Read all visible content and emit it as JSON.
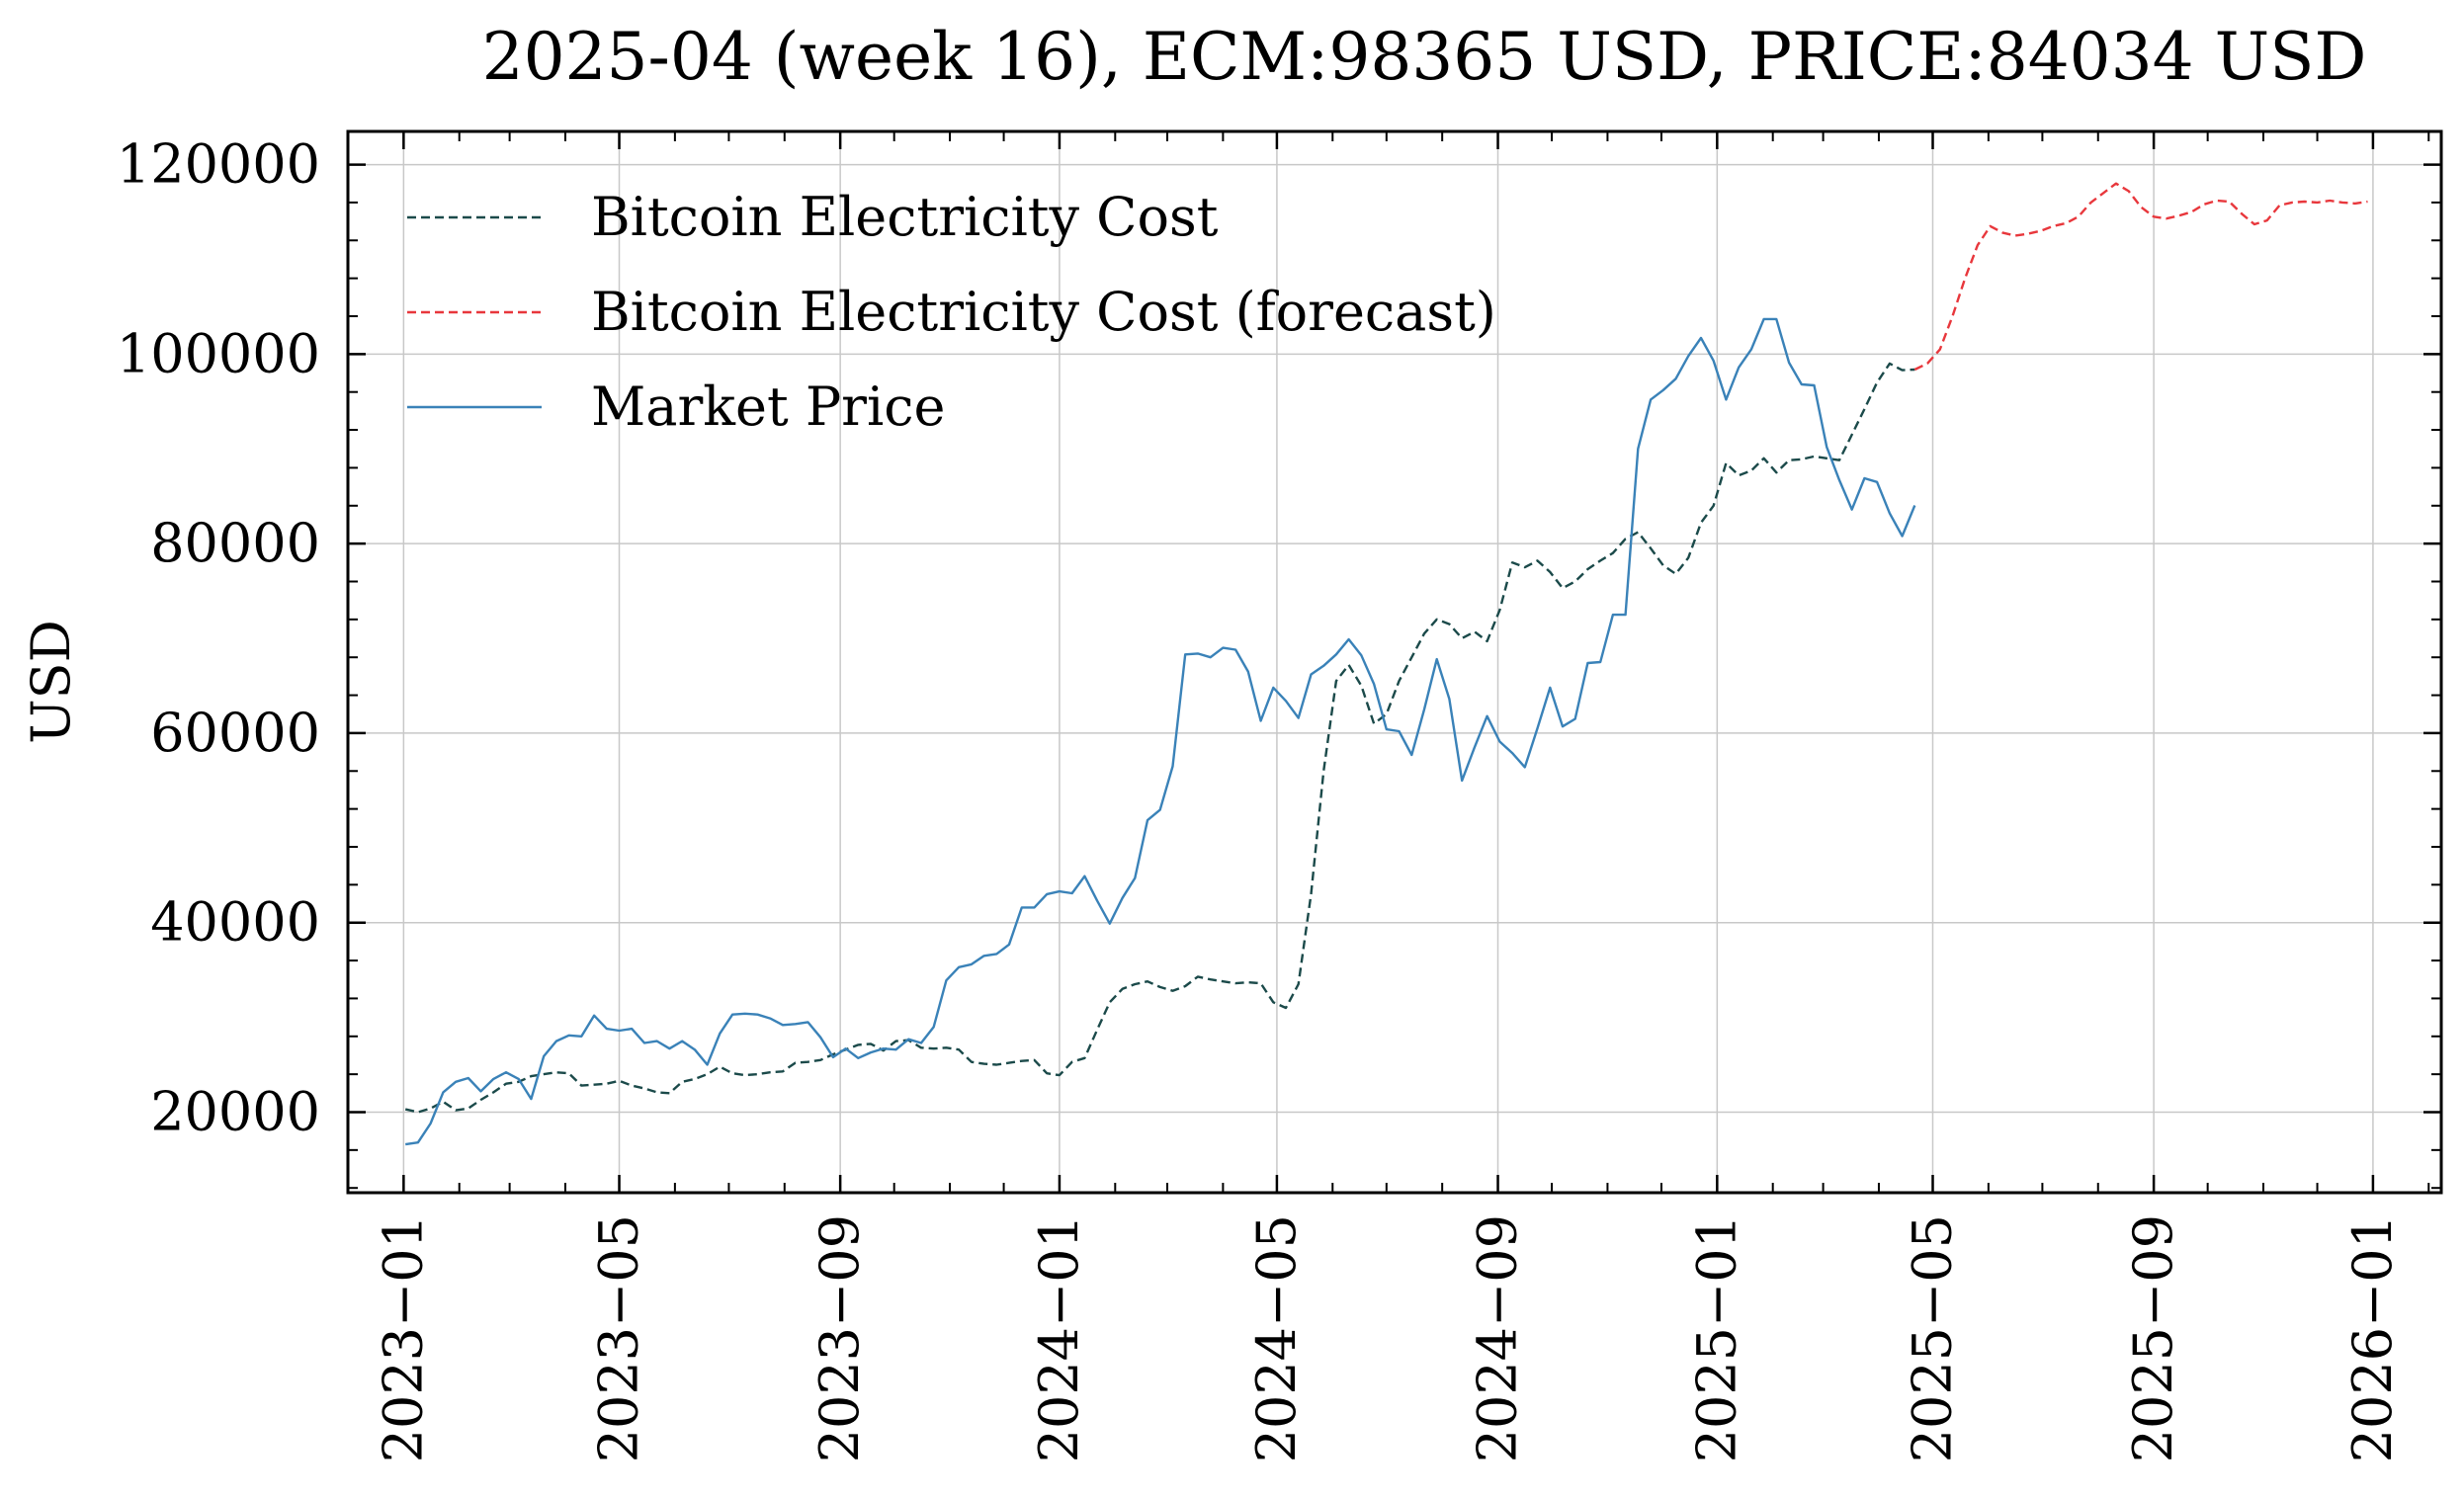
{
  "chart_data": {
    "type": "line",
    "title": "2025-04 (week 16), ECM:98365 USD, PRICE:84034 USD",
    "xlabel": "",
    "ylabel": "USD",
    "xlim": [
      "2022-12-01",
      "2026-02-08"
    ],
    "ylim": [
      11500,
      123500
    ],
    "yticks": [
      20000,
      40000,
      60000,
      80000,
      100000,
      120000
    ],
    "yticks_labels": [
      "20000",
      "40000",
      "60000",
      "80000",
      "100000",
      "120000"
    ],
    "xticks": [
      "2023-01-01",
      "2023-05-01",
      "2023-09-01",
      "2024-01-01",
      "2024-05-01",
      "2024-09-01",
      "2025-01-01",
      "2025-05-01",
      "2025-09-01",
      "2026-01-01"
    ],
    "xticks_labels": [
      "2023−01",
      "2023−05",
      "2023−09",
      "2024−01",
      "2024−05",
      "2024−09",
      "2025−01",
      "2025−05",
      "2025−09",
      "2026−01"
    ],
    "grid": true,
    "legend_position": "upper-left",
    "series": [
      {
        "name": "Bitcoin Electricity Cost",
        "style": "dashed",
        "color": "#1b4a4a",
        "x": [
          "2023-01-02",
          "2023-01-09",
          "2023-01-16",
          "2023-01-23",
          "2023-01-30",
          "2023-02-06",
          "2023-02-13",
          "2023-02-20",
          "2023-02-27",
          "2023-03-06",
          "2023-03-13",
          "2023-03-20",
          "2023-03-27",
          "2023-04-03",
          "2023-04-10",
          "2023-04-17",
          "2023-04-24",
          "2023-05-01",
          "2023-05-08",
          "2023-05-15",
          "2023-05-22",
          "2023-05-29",
          "2023-06-05",
          "2023-06-12",
          "2023-06-19",
          "2023-06-26",
          "2023-07-03",
          "2023-07-10",
          "2023-07-17",
          "2023-07-24",
          "2023-07-31",
          "2023-08-07",
          "2023-08-14",
          "2023-08-21",
          "2023-08-28",
          "2023-09-04",
          "2023-09-11",
          "2023-09-18",
          "2023-09-25",
          "2023-10-02",
          "2023-10-09",
          "2023-10-16",
          "2023-10-23",
          "2023-10-30",
          "2023-11-06",
          "2023-11-13",
          "2023-11-20",
          "2023-11-27",
          "2023-12-04",
          "2023-12-11",
          "2023-12-18",
          "2023-12-25",
          "2024-01-01",
          "2024-01-08",
          "2024-01-15",
          "2024-01-22",
          "2024-01-29",
          "2024-02-05",
          "2024-02-12",
          "2024-02-19",
          "2024-02-26",
          "2024-03-04",
          "2024-03-11",
          "2024-03-18",
          "2024-03-25",
          "2024-04-01",
          "2024-04-08",
          "2024-04-15",
          "2024-04-22",
          "2024-04-29",
          "2024-05-06",
          "2024-05-13",
          "2024-05-20",
          "2024-05-27",
          "2024-06-03",
          "2024-06-10",
          "2024-06-17",
          "2024-06-24",
          "2024-07-01",
          "2024-07-08",
          "2024-07-15",
          "2024-07-22",
          "2024-07-29",
          "2024-08-05",
          "2024-08-12",
          "2024-08-19",
          "2024-08-26",
          "2024-09-02",
          "2024-09-09",
          "2024-09-16",
          "2024-09-23",
          "2024-09-30",
          "2024-10-07",
          "2024-10-14",
          "2024-10-21",
          "2024-10-28",
          "2024-11-04",
          "2024-11-11",
          "2024-11-18",
          "2024-11-25",
          "2024-12-02",
          "2024-12-09",
          "2024-12-16",
          "2024-12-23",
          "2024-12-30",
          "2025-01-06",
          "2025-01-13",
          "2025-01-20",
          "2025-01-27",
          "2025-02-03",
          "2025-02-10",
          "2025-02-17",
          "2025-02-24",
          "2025-03-03",
          "2025-03-10",
          "2025-03-17",
          "2025-03-24",
          "2025-03-31",
          "2025-04-07",
          "2025-04-14",
          "2025-04-21"
        ],
        "y": [
          20300,
          20000,
          20400,
          21100,
          20200,
          20400,
          21300,
          22100,
          23000,
          23200,
          23800,
          24000,
          24200,
          24100,
          22800,
          22900,
          23000,
          23300,
          22800,
          22500,
          22100,
          22000,
          23200,
          23500,
          24000,
          24800,
          24100,
          23900,
          24000,
          24200,
          24300,
          25200,
          25300,
          25500,
          26100,
          26600,
          27100,
          27200,
          26500,
          27500,
          27600,
          26800,
          26700,
          26800,
          26600,
          25300,
          25100,
          25000,
          25200,
          25400,
          25500,
          24100,
          23900,
          25300,
          25700,
          28700,
          31600,
          33000,
          33500,
          33800,
          33200,
          32800,
          33300,
          34300,
          34000,
          33800,
          33600,
          33700,
          33600,
          31600,
          31000,
          33500,
          43000,
          56000,
          65500,
          67200,
          65000,
          61000,
          62000,
          65500,
          68000,
          70500,
          72000,
          71500,
          70000,
          70700,
          69700,
          73000,
          78000,
          77500,
          78200,
          77000,
          75300,
          76000,
          77300,
          78200,
          79000,
          80500,
          81200,
          79500,
          77700,
          76800,
          78500,
          82200,
          84000,
          88500,
          87200,
          87700,
          89000,
          87500,
          88800,
          88900,
          89200,
          89000,
          88800,
          91500,
          94200,
          97000,
          99000,
          98300,
          98365
        ]
      },
      {
        "name": "Bitcoin Electricity Cost (forecast)",
        "style": "dashed",
        "color": "#e8373c",
        "x": [
          "2025-04-21",
          "2025-04-28",
          "2025-05-05",
          "2025-05-12",
          "2025-05-19",
          "2025-05-26",
          "2025-06-02",
          "2025-06-09",
          "2025-06-16",
          "2025-06-23",
          "2025-06-30",
          "2025-07-07",
          "2025-07-14",
          "2025-07-21",
          "2025-07-28",
          "2025-08-04",
          "2025-08-11",
          "2025-08-18",
          "2025-08-25",
          "2025-09-01",
          "2025-09-08",
          "2025-09-15",
          "2025-09-22",
          "2025-09-29",
          "2025-10-06",
          "2025-10-13",
          "2025-10-20",
          "2025-10-27",
          "2025-11-03",
          "2025-11-10",
          "2025-11-17",
          "2025-11-24",
          "2025-12-01",
          "2025-12-08",
          "2025-12-15",
          "2025-12-22",
          "2025-12-29"
        ],
        "y": [
          98365,
          99000,
          100500,
          104000,
          108000,
          111500,
          113500,
          112800,
          112500,
          112700,
          113000,
          113500,
          113800,
          114500,
          116000,
          117000,
          118000,
          117200,
          115500,
          114500,
          114300,
          114600,
          115000,
          115800,
          116200,
          116100,
          114800,
          113700,
          114100,
          115700,
          116000,
          116100,
          116000,
          116200,
          116000,
          115900,
          116100
        ]
      },
      {
        "name": "Market Price",
        "style": "solid",
        "color": "#3a82b8",
        "x": [
          "2023-01-02",
          "2023-01-09",
          "2023-01-16",
          "2023-01-23",
          "2023-01-30",
          "2023-02-06",
          "2023-02-13",
          "2023-02-20",
          "2023-02-27",
          "2023-03-06",
          "2023-03-13",
          "2023-03-20",
          "2023-03-27",
          "2023-04-03",
          "2023-04-10",
          "2023-04-17",
          "2023-04-24",
          "2023-05-01",
          "2023-05-08",
          "2023-05-15",
          "2023-05-22",
          "2023-05-29",
          "2023-06-05",
          "2023-06-12",
          "2023-06-19",
          "2023-06-26",
          "2023-07-03",
          "2023-07-10",
          "2023-07-17",
          "2023-07-24",
          "2023-07-31",
          "2023-08-07",
          "2023-08-14",
          "2023-08-21",
          "2023-08-28",
          "2023-09-04",
          "2023-09-11",
          "2023-09-18",
          "2023-09-25",
          "2023-10-02",
          "2023-10-09",
          "2023-10-16",
          "2023-10-23",
          "2023-10-30",
          "2023-11-06",
          "2023-11-13",
          "2023-11-20",
          "2023-11-27",
          "2023-12-04",
          "2023-12-11",
          "2023-12-18",
          "2023-12-25",
          "2024-01-01",
          "2024-01-08",
          "2024-01-15",
          "2024-01-22",
          "2024-01-29",
          "2024-02-05",
          "2024-02-12",
          "2024-02-19",
          "2024-02-26",
          "2024-03-04",
          "2024-03-11",
          "2024-03-18",
          "2024-03-25",
          "2024-04-01",
          "2024-04-08",
          "2024-04-15",
          "2024-04-22",
          "2024-04-29",
          "2024-05-06",
          "2024-05-13",
          "2024-05-20",
          "2024-05-27",
          "2024-06-03",
          "2024-06-10",
          "2024-06-17",
          "2024-06-24",
          "2024-07-01",
          "2024-07-08",
          "2024-07-15",
          "2024-07-22",
          "2024-07-29",
          "2024-08-05",
          "2024-08-12",
          "2024-08-19",
          "2024-08-26",
          "2024-09-02",
          "2024-09-09",
          "2024-09-16",
          "2024-09-23",
          "2024-09-30",
          "2024-10-07",
          "2024-10-14",
          "2024-10-21",
          "2024-10-28",
          "2024-11-04",
          "2024-11-11",
          "2024-11-18",
          "2024-11-25",
          "2024-12-02",
          "2024-12-09",
          "2024-12-16",
          "2024-12-23",
          "2024-12-30",
          "2025-01-06",
          "2025-01-13",
          "2025-01-20",
          "2025-01-27",
          "2025-02-03",
          "2025-02-10",
          "2025-02-17",
          "2025-02-24",
          "2025-03-03",
          "2025-03-10",
          "2025-03-17",
          "2025-03-24",
          "2025-03-31",
          "2025-04-07",
          "2025-04-14",
          "2025-04-21"
        ],
        "y": [
          16600,
          16800,
          18800,
          22100,
          23200,
          23600,
          22200,
          23500,
          24200,
          23500,
          21400,
          25900,
          27500,
          28100,
          28000,
          30200,
          28800,
          28600,
          28800,
          27300,
          27500,
          26700,
          27500,
          26600,
          25000,
          28300,
          30300,
          30400,
          30300,
          29900,
          29200,
          29300,
          29500,
          27900,
          25800,
          26700,
          25700,
          26300,
          26700,
          26600,
          27700,
          27300,
          29000,
          33900,
          35300,
          35600,
          36500,
          36700,
          37700,
          41600,
          41600,
          43000,
          43300,
          43100,
          44900,
          42300,
          39900,
          42600,
          44700,
          50800,
          51900,
          56500,
          68300,
          68400,
          68000,
          69000,
          68800,
          66500,
          61300,
          64800,
          63400,
          61600,
          66200,
          67100,
          68300,
          69900,
          68200,
          65200,
          60400,
          60200,
          57700,
          62500,
          67800,
          63600,
          55000,
          58500,
          61800,
          59100,
          57900,
          56400,
          60500,
          64800,
          60700,
          61500,
          67400,
          67500,
          72500,
          72500,
          90000,
          95200,
          96200,
          97400,
          99800,
          101700,
          99300,
          95200,
          98600,
          100500,
          103700,
          103700,
          99100,
          96800,
          96700,
          90200,
          86700,
          83600,
          86900,
          86500,
          83200,
          80800,
          84034
        ]
      }
    ]
  }
}
